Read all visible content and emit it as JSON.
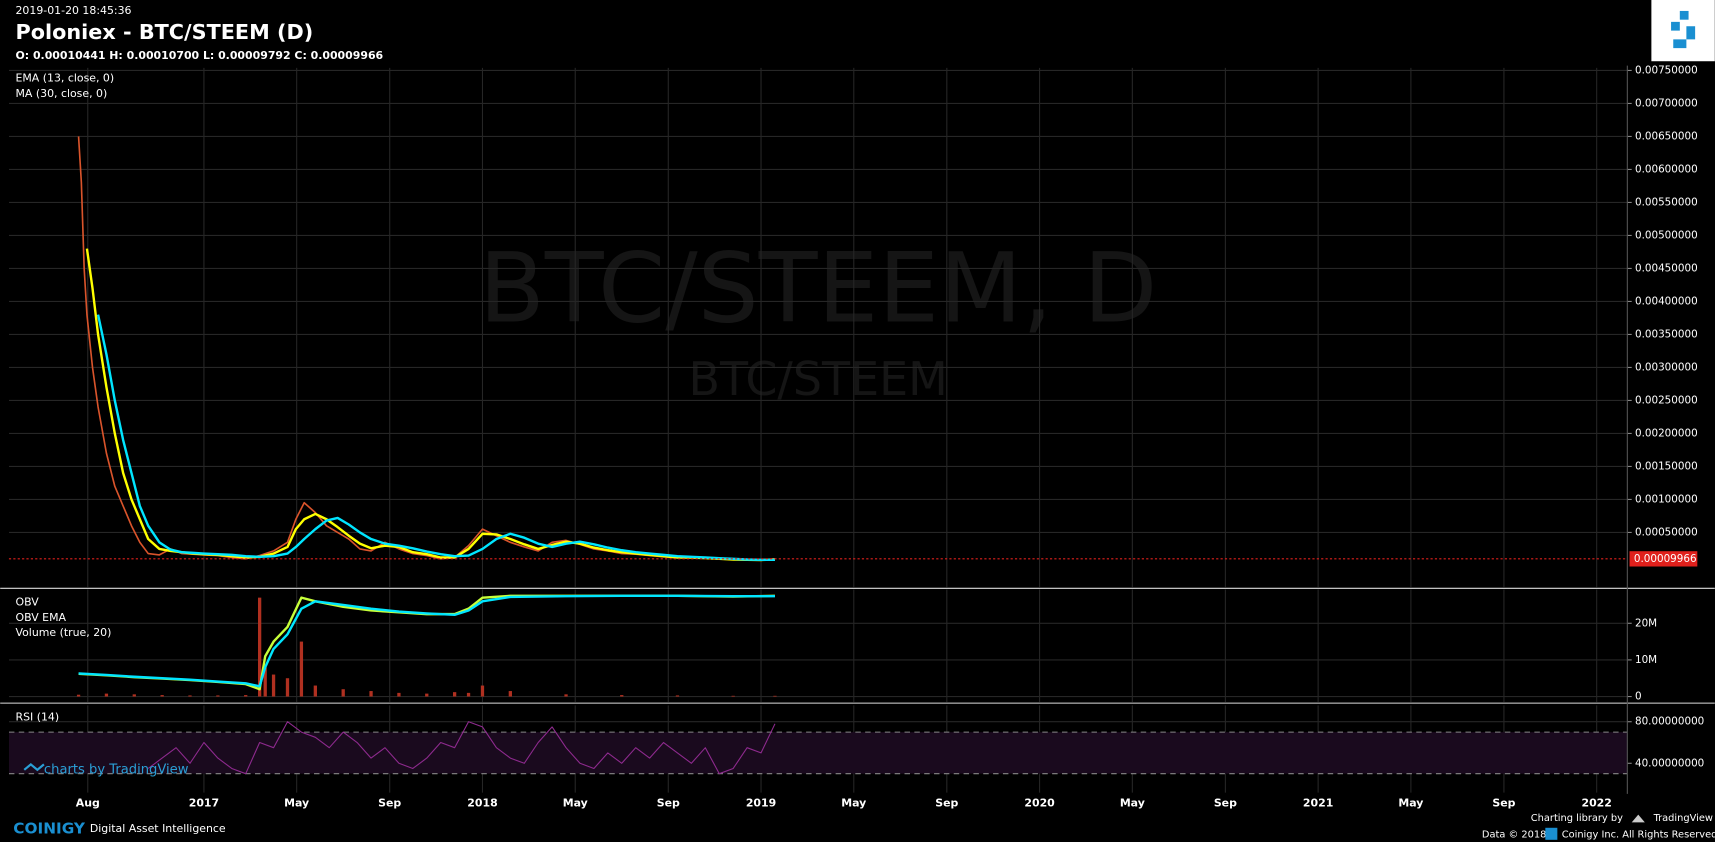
{
  "chart_data": [
    {
      "type": "line",
      "title": "Poloniex - BTC/STEEM (D)",
      "timestamp": "2019-01-20 18:45:36",
      "ohlc": "O: 0.00010441 H: 0.00010700 L: 0.00009792 C: 0.00009966",
      "watermark": [
        "BTC/STEEM, D",
        "BTC/STEEM"
      ],
      "x": [
        2016.55,
        2016.56,
        2016.57,
        2016.58,
        2016.6,
        2016.62,
        2016.65,
        2016.68,
        2016.71,
        2016.74,
        2016.77,
        2016.8,
        2016.84,
        2016.88,
        2016.92,
        2016.96,
        2017.0,
        2017.05,
        2017.1,
        2017.15,
        2017.2,
        2017.25,
        2017.3,
        2017.33,
        2017.36,
        2017.4,
        2017.44,
        2017.48,
        2017.52,
        2017.56,
        2017.6,
        2017.65,
        2017.7,
        2017.75,
        2017.8,
        2017.85,
        2017.9,
        2017.95,
        2018.0,
        2018.05,
        2018.1,
        2018.15,
        2018.2,
        2018.25,
        2018.3,
        2018.35,
        2018.4,
        2018.45,
        2018.5,
        2018.55,
        2018.6,
        2018.65,
        2018.7,
        2018.75,
        2018.8,
        2018.85,
        2018.9,
        2018.95,
        2019.0,
        2019.05
      ],
      "values": [
        0.0065,
        0.0058,
        0.0045,
        0.0038,
        0.003,
        0.0024,
        0.0017,
        0.0012,
        0.0009,
        0.0006,
        0.00035,
        0.00018,
        0.00016,
        0.00025,
        0.00018,
        0.00017,
        0.00016,
        0.00015,
        0.00012,
        0.0001,
        0.00015,
        0.00022,
        0.00035,
        0.0007,
        0.00095,
        0.0008,
        0.0006,
        0.0005,
        0.0004,
        0.00025,
        0.00022,
        0.00035,
        0.00025,
        0.00018,
        0.00015,
        0.0001,
        0.00012,
        0.0003,
        0.00055,
        0.00045,
        0.00035,
        0.00028,
        0.00022,
        0.00035,
        0.00038,
        0.00032,
        0.00025,
        0.00022,
        0.00018,
        0.00017,
        0.00015,
        0.00013,
        0.00012,
        0.00012,
        0.00011,
        0.0001,
        9e-05,
        8e-05,
        8e-05,
        9.97e-05
      ],
      "color": "#d9542b",
      "series": [
        {
          "name": "EMA (13, close, 0)",
          "color": "#ffff00",
          "values": [
            null,
            null,
            null,
            0.0048,
            0.0042,
            0.0035,
            0.0027,
            0.002,
            0.0014,
            0.001,
            0.0007,
            0.0004,
            0.00025,
            0.00022,
            0.0002,
            0.00018,
            0.00017,
            0.00016,
            0.00014,
            0.00012,
            0.00013,
            0.00018,
            0.00028,
            0.00055,
            0.0007,
            0.00078,
            0.0007,
            0.00058,
            0.00045,
            0.00033,
            0.00026,
            0.0003,
            0.00028,
            0.0002,
            0.00017,
            0.00012,
            0.00012,
            0.00025,
            0.00048,
            0.00047,
            0.0004,
            0.00032,
            0.00025,
            0.00031,
            0.00036,
            0.00033,
            0.00027,
            0.00023,
            0.0002,
            0.00018,
            0.00016,
            0.00014,
            0.00012,
            0.00012,
            0.00011,
            0.0001,
            9e-05,
            8.5e-05,
            8.2e-05,
            9e-05
          ]
        },
        {
          "name": "MA (30, close, 0)",
          "color": "#00e5ff",
          "values": [
            null,
            null,
            null,
            null,
            null,
            0.0038,
            0.0032,
            0.0025,
            0.0019,
            0.0014,
            0.0009,
            0.0006,
            0.00035,
            0.00024,
            0.0002,
            0.00019,
            0.00018,
            0.00017,
            0.00016,
            0.00014,
            0.00013,
            0.00014,
            0.00018,
            0.00028,
            0.0004,
            0.00055,
            0.00068,
            0.00072,
            0.00062,
            0.0005,
            0.0004,
            0.00033,
            0.0003,
            0.00026,
            0.00021,
            0.00017,
            0.00014,
            0.00015,
            0.00025,
            0.0004,
            0.00048,
            0.00042,
            0.00033,
            0.00028,
            0.00033,
            0.00036,
            0.00032,
            0.00027,
            0.00023,
            0.0002,
            0.00018,
            0.00016,
            0.00014,
            0.00013,
            0.00012,
            0.00011,
            0.0001,
            9e-05,
            8.5e-05,
            8.5e-05
          ]
        }
      ],
      "last_price": 9.966e-05,
      "last_color": "#e0201c",
      "xlim": [
        2016.3,
        2022.11
      ],
      "ylim": [
        -0.00033,
        0.00754
      ],
      "yticks": [
        {
          "value": 0.0005,
          "label": "0.00050000"
        },
        {
          "value": 0.001,
          "label": "0.00100000"
        },
        {
          "value": 0.0015,
          "label": "0.00150000"
        },
        {
          "value": 0.002,
          "label": "0.00200000"
        },
        {
          "value": 0.0025,
          "label": "0.00250000"
        },
        {
          "value": 0.003,
          "label": "0.00300000"
        },
        {
          "value": 0.0035,
          "label": "0.00350000"
        },
        {
          "value": 0.004,
          "label": "0.00400000"
        },
        {
          "value": 0.0045,
          "label": "0.00450000"
        },
        {
          "value": 0.005,
          "label": "0.00500000"
        },
        {
          "value": 0.0055,
          "label": "0.00550000"
        },
        {
          "value": 0.006,
          "label": "0.00600000"
        },
        {
          "value": 0.0065,
          "label": "0.00650000"
        },
        {
          "value": 0.007,
          "label": "0.00700000"
        },
        {
          "value": 0.0075,
          "label": "0.00750000"
        }
      ],
      "grid": true
    },
    {
      "type": "line",
      "x": [
        2016.55,
        2016.65,
        2016.75,
        2016.85,
        2016.95,
        2017.05,
        2017.15,
        2017.2,
        2017.22,
        2017.25,
        2017.3,
        2017.35,
        2017.4,
        2017.5,
        2017.6,
        2017.7,
        2017.8,
        2017.9,
        2017.95,
        2018.0,
        2018.1,
        2018.3,
        2018.5,
        2018.7,
        2018.9,
        2019.05
      ],
      "series": [
        {
          "name": "OBV",
          "color": "#c6ff3a",
          "values": [
            6200000,
            5800000,
            5300000,
            4900000,
            4500000,
            4000000,
            3400000,
            2000000,
            11000000,
            15000000,
            19000000,
            27000000,
            26000000,
            24500000,
            23500000,
            23000000,
            22500000,
            22500000,
            24000000,
            27000000,
            27500000,
            27500000,
            27500000,
            27500000,
            27300000,
            27500000
          ]
        },
        {
          "name": "OBV EMA",
          "color": "#00e5ff",
          "values": [
            6300000,
            5900000,
            5400000,
            5000000,
            4600000,
            4100000,
            3600000,
            2800000,
            8000000,
            13000000,
            17000000,
            24000000,
            26000000,
            25000000,
            24000000,
            23200000,
            22700000,
            22300000,
            23500000,
            26000000,
            27200000,
            27400000,
            27500000,
            27500000,
            27400000,
            27400000
          ]
        },
        {
          "name": "Volume (true, 20)",
          "color": "#b03020",
          "kind": "bar",
          "values": [
            500000,
            800000,
            600000,
            400000,
            300000,
            300000,
            400000,
            27000000,
            8000000,
            6000000,
            5000000,
            15000000,
            3000000,
            2000000,
            1500000,
            1000000,
            800000,
            1200000,
            1000000,
            3000000,
            1500000,
            600000,
            400000,
            300000,
            200000,
            200000
          ]
        }
      ],
      "xlim": [
        2016.3,
        2022.11
      ],
      "ylim": [
        -1500000,
        29250000
      ],
      "yticks": [
        0,
        {
          "value": 10000000,
          "label": "10M"
        },
        {
          "value": 20000000,
          "label": "20M"
        }
      ],
      "grid": true
    },
    {
      "type": "line",
      "x": [
        2016.8,
        2016.85,
        2016.9,
        2016.95,
        2017.0,
        2017.05,
        2017.1,
        2017.15,
        2017.2,
        2017.25,
        2017.3,
        2017.35,
        2017.4,
        2017.45,
        2017.5,
        2017.55,
        2017.6,
        2017.65,
        2017.7,
        2017.75,
        2017.8,
        2017.85,
        2017.9,
        2017.95,
        2018.0,
        2018.05,
        2018.1,
        2018.15,
        2018.2,
        2018.25,
        2018.3,
        2018.35,
        2018.4,
        2018.45,
        2018.5,
        2018.55,
        2018.6,
        2018.65,
        2018.7,
        2018.75,
        2018.8,
        2018.85,
        2018.9,
        2018.95,
        2019.0,
        2019.05
      ],
      "series": [
        {
          "name": "RSI (14)",
          "color": "#8e2a8e",
          "values": [
            35,
            45,
            55,
            40,
            60,
            45,
            35,
            30,
            60,
            55,
            80,
            70,
            65,
            55,
            70,
            60,
            45,
            55,
            40,
            35,
            45,
            60,
            55,
            80,
            75,
            55,
            45,
            40,
            60,
            75,
            55,
            40,
            35,
            50,
            40,
            55,
            45,
            60,
            50,
            40,
            55,
            30,
            35,
            55,
            50,
            78
          ]
        }
      ],
      "levels": [
        30,
        70
      ],
      "xlim": [
        2016.3,
        2022.11
      ],
      "ylim": [
        11.6,
        95.8
      ],
      "yticks": [
        {
          "value": 40,
          "label": "40.00000000"
        },
        {
          "value": 80,
          "label": "80.00000000"
        }
      ],
      "xticks": [
        {
          "value": 2016.583,
          "label": "Aug"
        },
        2017,
        {
          "value": 2017.333,
          "label": "May"
        },
        {
          "value": 2017.667,
          "label": "Sep"
        },
        2018,
        {
          "value": 2018.333,
          "label": "May"
        },
        {
          "value": 2018.667,
          "label": "Sep"
        },
        2019,
        {
          "value": 2019.333,
          "label": "May"
        },
        {
          "value": 2019.667,
          "label": "Sep"
        },
        2020,
        {
          "value": 2020.333,
          "label": "May"
        },
        {
          "value": 2020.667,
          "label": "Sep"
        },
        2021,
        {
          "value": 2021.333,
          "label": "May"
        },
        {
          "value": 2021.667,
          "label": "Sep"
        },
        2022
      ],
      "grid": true
    }
  ],
  "footer": {
    "tv_badge": "charts by TradingView",
    "brand": "COINIGY",
    "tagline": "Digital Asset Intelligence",
    "charting": "Charting library by",
    "tradingview": "TradingView",
    "data": "Data © 2018",
    "rights": "Coinigy Inc. All Rights Reserved."
  }
}
